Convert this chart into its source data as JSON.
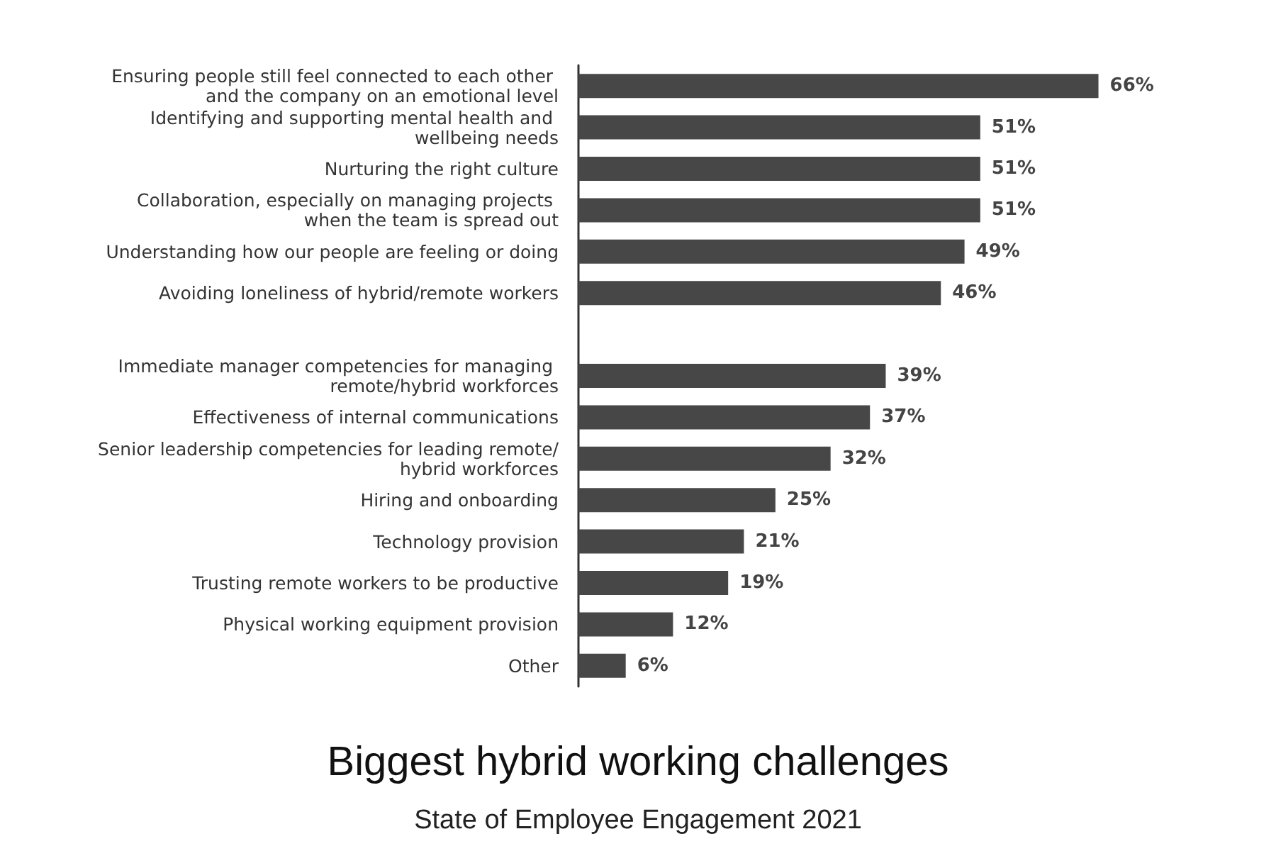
{
  "chart_data": {
    "type": "bar",
    "orientation": "horizontal",
    "title": "Biggest hybrid working challenges",
    "subtitle": "State of Employee Engagement 2021",
    "categories": [
      "Ensuring people still feel connected to each other and the company on an emotional level",
      "Identifying and supporting mental health and wellbeing needs",
      "Nurturing the right culture",
      "Collaboration, especially on managing projects when the team is spread out",
      "Understanding how our people are feeling or doing",
      "Avoiding loneliness of hybrid/remote workers",
      null,
      "Immediate manager competencies for managing remote/hybrid workforces",
      "Effectiveness of internal communications",
      "Senior leadership competencies for leading remote/hybrid workforces",
      "Hiring and onboarding",
      "Technology provision",
      "Trusting remote workers to be productive",
      "Physical working equipment provision",
      "Other"
    ],
    "values": [
      66,
      51,
      51,
      51,
      49,
      46,
      null,
      39,
      37,
      32,
      25,
      21,
      19,
      12,
      6
    ],
    "value_labels": [
      "66%",
      "51%",
      "51%",
      "51%",
      "49%",
      "46%",
      null,
      "39%",
      "37%",
      "32%",
      "25%",
      "21%",
      "19%",
      "12%",
      "6%"
    ],
    "color": "#474747",
    "grid": false
  }
}
